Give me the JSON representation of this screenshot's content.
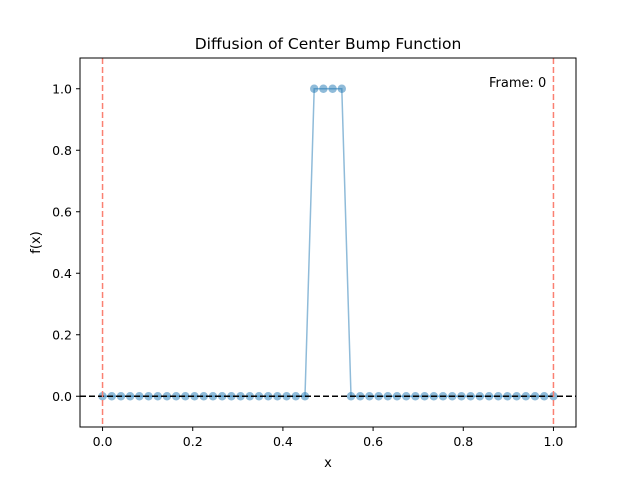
{
  "chart_data": {
    "type": "line",
    "title": "Diffusion of Center Bump Function",
    "xlabel": "x",
    "ylabel": "f(x)",
    "xlim": [
      -0.05,
      1.05
    ],
    "ylim": [
      -0.1,
      1.1
    ],
    "xticks": [
      0.0,
      0.2,
      0.4,
      0.6,
      0.8,
      1.0
    ],
    "xtick_labels": [
      "0.0",
      "0.2",
      "0.4",
      "0.6",
      "0.8",
      "1.0"
    ],
    "yticks": [
      0.0,
      0.2,
      0.4,
      0.6,
      0.8,
      1.0
    ],
    "ytick_labels": [
      "0.0",
      "0.2",
      "0.4",
      "0.6",
      "0.8",
      "1.0"
    ],
    "grid": false,
    "legend": "none",
    "annotation": "Frame: 0",
    "series": [
      {
        "color": "#1f77b4",
        "marker": "circle",
        "x": [
          0.0,
          0.02040816,
          0.04081633,
          0.06122449,
          0.08163265,
          0.10204082,
          0.12244898,
          0.14285714,
          0.16326531,
          0.18367347,
          0.20408163,
          0.2244898,
          0.24489796,
          0.26530612,
          0.28571429,
          0.30612245,
          0.32653061,
          0.34693878,
          0.36734694,
          0.3877551,
          0.40816327,
          0.42857143,
          0.44897959,
          0.46938776,
          0.48979592,
          0.51020408,
          0.53061224,
          0.55102041,
          0.57142857,
          0.59183673,
          0.6122449,
          0.63265306,
          0.65306122,
          0.67346939,
          0.69387755,
          0.71428571,
          0.73469388,
          0.75510204,
          0.7755102,
          0.79591837,
          0.81632653,
          0.83673469,
          0.85714286,
          0.87755102,
          0.89795918,
          0.91836735,
          0.93877551,
          0.95918367,
          0.97959184,
          1.0
        ],
        "y": [
          0,
          0,
          0,
          0,
          0,
          0,
          0,
          0,
          0,
          0,
          0,
          0,
          0,
          0,
          0,
          0,
          0,
          0,
          0,
          0,
          0,
          0,
          0,
          1,
          1,
          1,
          1,
          0,
          0,
          0,
          0,
          0,
          0,
          0,
          0,
          0,
          0,
          0,
          0,
          0,
          0,
          0,
          0,
          0,
          0,
          0,
          0,
          0,
          0,
          0
        ]
      }
    ],
    "reference_lines": [
      {
        "orientation": "horizontal",
        "value": 0.0,
        "style": "dashed",
        "color": "#000000"
      },
      {
        "orientation": "vertical",
        "value": 0.0,
        "style": "dashed",
        "color": "#fa8072"
      },
      {
        "orientation": "vertical",
        "value": 1.0,
        "style": "dashed",
        "color": "#fa8072"
      }
    ]
  }
}
